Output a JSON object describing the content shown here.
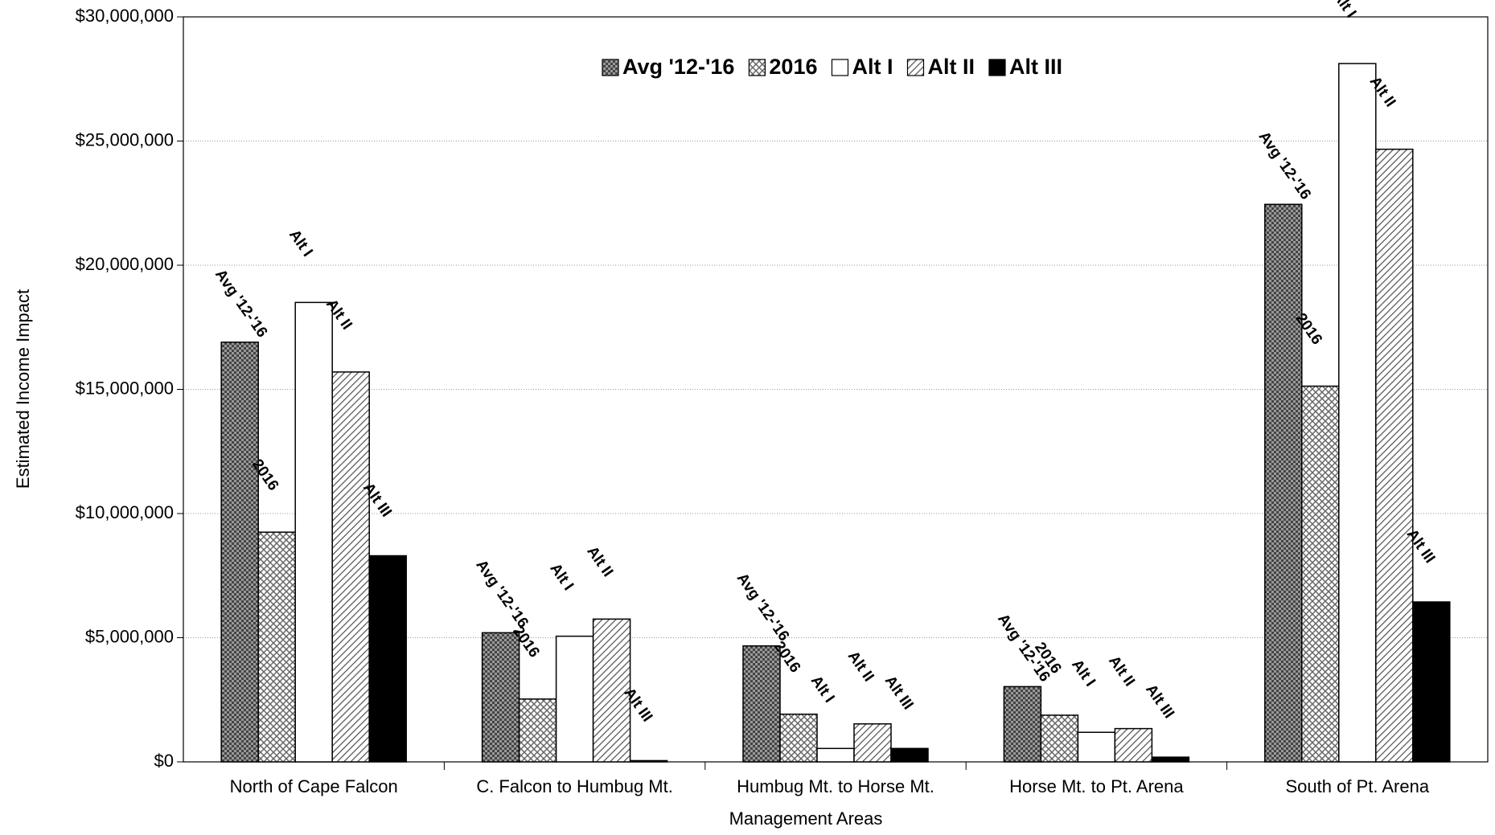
{
  "chart_data": {
    "type": "bar",
    "xlabel": "Management Areas",
    "ylabel": "Estimated Income Impact",
    "categories": [
      "North of Cape Falcon",
      "C. Falcon to Humbug Mt.",
      "Humbug Mt. to Horse Mt.",
      "Horse Mt. to Pt. Arena",
      "South of Pt. Arena"
    ],
    "series": [
      {
        "name": "Avg '12-'16",
        "color": "#555555",
        "values": [
          16900000,
          5200000,
          4670000,
          3030000,
          22450000
        ]
      },
      {
        "name": "2016",
        "color": "#bbbbbb",
        "values": [
          9250000,
          2530000,
          1920000,
          1880000,
          15130000
        ]
      },
      {
        "name": "Alt I",
        "color": "#ffffff",
        "values": [
          18500000,
          5060000,
          540000,
          1190000,
          28120000
        ]
      },
      {
        "name": "Alt II",
        "color": "#d0d0d0",
        "values": [
          15700000,
          5750000,
          1530000,
          1340000,
          24670000
        ]
      },
      {
        "name": "Alt III",
        "color": "#000000",
        "values": [
          8300000,
          50000,
          540000,
          190000,
          6440000
        ]
      }
    ],
    "ylim": [
      0,
      30000000
    ],
    "yticks": [
      {
        "value": 0,
        "label": "$0"
      },
      {
        "value": 5000000,
        "label": "$5,000,000"
      },
      {
        "value": 10000000,
        "label": "$10,000,000"
      },
      {
        "value": 15000000,
        "label": "$15,000,000"
      },
      {
        "value": 20000000,
        "label": "$20,000,000"
      },
      {
        "value": 25000000,
        "label": "$25,000,000"
      },
      {
        "value": 30000000,
        "label": "$30,000,000"
      }
    ],
    "grid": true,
    "legend": "top"
  }
}
